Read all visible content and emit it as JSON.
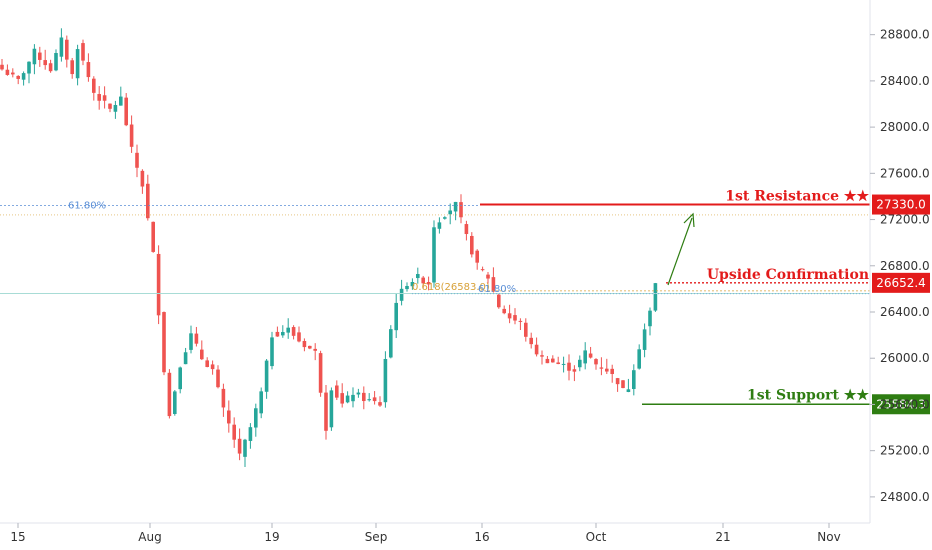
{
  "colors": {
    "up": "#26a69a",
    "down": "#ef5350",
    "resistance": "#e31b1b",
    "support": "#2e7d12",
    "fib_blue": "#5b8fd6",
    "fib_orange": "#d8a23a",
    "grid_teal": "#a8dcd6",
    "arrow": "#2e7d12"
  },
  "chart_data": {
    "type": "candlestick",
    "ylim": [
      24600,
      29100
    ],
    "y_ticks": [
      "24800.0",
      "25200.0",
      "25600.0",
      "26000.0",
      "26400.0",
      "26800.0",
      "27200.0",
      "27600.0",
      "28000.0",
      "28400.0",
      "28800.0"
    ],
    "x_ticks": [
      "15",
      "Aug",
      "19",
      "Sep",
      "16",
      "Oct",
      "21",
      "Nov"
    ],
    "anchors": [
      [
        0,
        28500
      ],
      [
        3,
        28400
      ],
      [
        6,
        28650
      ],
      [
        9,
        28500
      ],
      [
        11,
        28750
      ],
      [
        13,
        28450
      ],
      [
        14,
        28700
      ],
      [
        17,
        28300
      ],
      [
        20,
        28150
      ],
      [
        22,
        28250
      ],
      [
        24,
        27800
      ],
      [
        26,
        27500
      ],
      [
        28,
        26900
      ],
      [
        30,
        25900
      ],
      [
        31,
        25500
      ],
      [
        33,
        25950
      ],
      [
        35,
        26200
      ],
      [
        37,
        26000
      ],
      [
        39,
        25900
      ],
      [
        41,
        25550
      ],
      [
        43,
        25300
      ],
      [
        44,
        25150
      ],
      [
        46,
        25400
      ],
      [
        48,
        25700
      ],
      [
        50,
        26200
      ],
      [
        53,
        26250
      ],
      [
        55,
        26150
      ],
      [
        58,
        26050
      ],
      [
        60,
        25400
      ],
      [
        61,
        25750
      ],
      [
        63,
        25600
      ],
      [
        65,
        25700
      ],
      [
        67,
        25650
      ],
      [
        70,
        25600
      ],
      [
        71,
        26000
      ],
      [
        73,
        26500
      ],
      [
        75,
        26650
      ],
      [
        77,
        26700
      ],
      [
        79,
        26650
      ],
      [
        80,
        27150
      ],
      [
        82,
        27250
      ],
      [
        84,
        27330
      ],
      [
        86,
        27050
      ],
      [
        88,
        26800
      ],
      [
        90,
        26700
      ],
      [
        92,
        26450
      ],
      [
        94,
        26350
      ],
      [
        96,
        26300
      ],
      [
        98,
        26100
      ],
      [
        100,
        26000
      ],
      [
        103,
        25950
      ],
      [
        106,
        25900
      ],
      [
        108,
        26050
      ],
      [
        110,
        25950
      ],
      [
        112,
        25900
      ],
      [
        114,
        25800
      ],
      [
        115,
        25720
      ],
      [
        116,
        25750
      ],
      [
        118,
        26100
      ],
      [
        120,
        26400
      ],
      [
        121,
        26640
      ]
    ],
    "levels": [
      {
        "name": "1st Resistance ★★",
        "value": 27330.0,
        "label": "27330.0",
        "color": "#e31b1b"
      },
      {
        "name": "Upside Confirmation",
        "value": 26652.4,
        "label": "26652.4",
        "color": "#e31b1b"
      },
      {
        "name": "1st Support ★★",
        "value": 25584.3,
        "label": "25584.3",
        "color": "#2e7d12"
      }
    ],
    "fib_annotations": [
      {
        "label": "61.80%",
        "value": 27330,
        "color": "#5b8fd6"
      },
      {
        "label": "0.618(26583.0)",
        "value": 26583,
        "color": "#d8a23a"
      },
      {
        "label": "61.80%",
        "value": 26583,
        "color": "#5b8fd6"
      }
    ],
    "horizontal_lines": [
      27240,
      26560
    ]
  }
}
